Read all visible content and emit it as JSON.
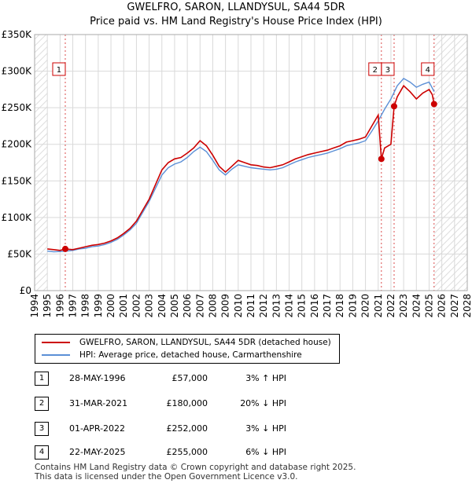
{
  "header": {
    "title": "GWELFRO, SARON, LLANDYSUL, SA44 5DR",
    "subtitle": "Price paid vs. HM Land Registry's House Price Index (HPI)"
  },
  "chart_data": {
    "type": "line",
    "title": "GWELFRO, SARON, LLANDYSUL, SA44 5DR",
    "subtitle": "Price paid vs. HM Land Registry's House Price Index (HPI)",
    "xlabel": "",
    "ylabel": "",
    "xlim": [
      1994,
      2028
    ],
    "ylim": [
      0,
      350000
    ],
    "grid": true,
    "x_ticks": [
      "1994",
      "1995",
      "1996",
      "1997",
      "1998",
      "1999",
      "2000",
      "2001",
      "2002",
      "2003",
      "2004",
      "2005",
      "2006",
      "2007",
      "2008",
      "2009",
      "2010",
      "2011",
      "2012",
      "2013",
      "2014",
      "2015",
      "2016",
      "2017",
      "2018",
      "2019",
      "2020",
      "2021",
      "2022",
      "2023",
      "2024",
      "2025",
      "2026",
      "2027",
      "2028"
    ],
    "y_ticks": [
      {
        "value": 0,
        "label": "£0"
      },
      {
        "value": 50000,
        "label": "£50K"
      },
      {
        "value": 100000,
        "label": "£100K"
      },
      {
        "value": 150000,
        "label": "£150K"
      },
      {
        "value": 200000,
        "label": "£200K"
      },
      {
        "value": 250000,
        "label": "£250K"
      },
      {
        "value": 300000,
        "label": "£300K"
      },
      {
        "value": 350000,
        "label": "£350K"
      }
    ],
    "series": [
      {
        "name": "GWELFRO, SARON, LLANDYSUL, SA44 5DR (detached house)",
        "color": "#cc0000",
        "x": [
          1995.0,
          1995.5,
          1996.0,
          1996.4,
          1997.0,
          1997.5,
          1998.0,
          1998.5,
          1999.0,
          1999.5,
          2000.0,
          2000.5,
          2001.0,
          2001.5,
          2002.0,
          2002.5,
          2003.0,
          2003.5,
          2004.0,
          2004.5,
          2005.0,
          2005.5,
          2006.0,
          2006.5,
          2007.0,
          2007.5,
          2008.0,
          2008.5,
          2009.0,
          2009.5,
          2010.0,
          2010.5,
          2011.0,
          2011.5,
          2012.0,
          2012.5,
          2013.0,
          2013.5,
          2014.0,
          2014.5,
          2015.0,
          2015.5,
          2016.0,
          2016.5,
          2017.0,
          2017.5,
          2018.0,
          2018.5,
          2019.0,
          2019.5,
          2020.0,
          2020.5,
          2021.0,
          2021.25,
          2021.5,
          2021.8,
          2022.0,
          2022.25,
          2022.5,
          2023.0,
          2023.5,
          2024.0,
          2024.5,
          2025.0,
          2025.25,
          2025.39
        ],
        "y": [
          57000,
          56000,
          55000,
          57000,
          56000,
          58000,
          60000,
          62000,
          63000,
          65000,
          68000,
          72000,
          78000,
          85000,
          95000,
          110000,
          125000,
          145000,
          165000,
          175000,
          180000,
          182000,
          188000,
          195000,
          205000,
          198000,
          185000,
          170000,
          162000,
          170000,
          178000,
          175000,
          172000,
          171000,
          169000,
          168000,
          170000,
          172000,
          176000,
          180000,
          183000,
          186000,
          188000,
          190000,
          192000,
          195000,
          198000,
          203000,
          205000,
          207000,
          210000,
          225000,
          240000,
          180000,
          195000,
          198000,
          200000,
          252000,
          265000,
          280000,
          272000,
          262000,
          270000,
          275000,
          268000,
          255000
        ]
      },
      {
        "name": "HPI: Average price, detached house, Carmarthenshire",
        "color": "#5b8fd6",
        "x": [
          1995.0,
          1995.5,
          1996.0,
          1996.5,
          1997.0,
          1997.5,
          1998.0,
          1998.5,
          1999.0,
          1999.5,
          2000.0,
          2000.5,
          2001.0,
          2001.5,
          2002.0,
          2002.5,
          2003.0,
          2003.5,
          2004.0,
          2004.5,
          2005.0,
          2005.5,
          2006.0,
          2006.5,
          2007.0,
          2007.5,
          2008.0,
          2008.5,
          2009.0,
          2009.5,
          2010.0,
          2010.5,
          2011.0,
          2011.5,
          2012.0,
          2012.5,
          2013.0,
          2013.5,
          2014.0,
          2014.5,
          2015.0,
          2015.5,
          2016.0,
          2016.5,
          2017.0,
          2017.5,
          2018.0,
          2018.5,
          2019.0,
          2019.5,
          2020.0,
          2020.5,
          2021.0,
          2021.5,
          2022.0,
          2022.5,
          2023.0,
          2023.5,
          2024.0,
          2024.5,
          2025.0,
          2025.4
        ],
        "y": [
          54000,
          53000,
          53500,
          54000,
          55000,
          57000,
          58000,
          60000,
          61000,
          63000,
          66000,
          70000,
          76000,
          83000,
          92000,
          107000,
          122000,
          140000,
          158000,
          168000,
          173000,
          176000,
          182000,
          190000,
          196000,
          190000,
          178000,
          165000,
          158000,
          166000,
          172000,
          170000,
          168000,
          167000,
          166000,
          165000,
          166000,
          168000,
          172000,
          176000,
          179000,
          182000,
          184000,
          186000,
          188000,
          191000,
          194000,
          198000,
          200000,
          202000,
          205000,
          218000,
          232000,
          248000,
          262000,
          280000,
          290000,
          285000,
          278000,
          282000,
          285000,
          272000
        ]
      }
    ],
    "sales": [
      {
        "label": "1",
        "x": 1996.41,
        "y": 57000
      },
      {
        "label": "2",
        "x": 2021.25,
        "y": 180000
      },
      {
        "label": "3",
        "x": 2022.25,
        "y": 252000
      },
      {
        "label": "4",
        "x": 2025.39,
        "y": 255000
      }
    ],
    "shading": {
      "from": 1994,
      "to": 1995,
      "future_from": 2025.39,
      "future_to": 2028
    }
  },
  "legend": {
    "items": [
      {
        "label": "GWELFRO, SARON, LLANDYSUL, SA44 5DR (detached house)",
        "color": "#cc0000"
      },
      {
        "label": "HPI: Average price, detached house, Carmarthenshire",
        "color": "#5b8fd6"
      }
    ]
  },
  "transactions": [
    {
      "num": "1",
      "date": "28-MAY-1996",
      "price": "£57,000",
      "hpi": "3% ↑ HPI"
    },
    {
      "num": "2",
      "date": "31-MAR-2021",
      "price": "£180,000",
      "hpi": "20% ↓ HPI"
    },
    {
      "num": "3",
      "date": "01-APR-2022",
      "price": "£252,000",
      "hpi": "3% ↓ HPI"
    },
    {
      "num": "4",
      "date": "22-MAY-2025",
      "price": "£255,000",
      "hpi": "6% ↓ HPI"
    }
  ],
  "footer": {
    "line1": "Contains HM Land Registry data © Crown copyright and database right 2025.",
    "line2": "This data is licensed under the Open Government Licence v3.0."
  }
}
